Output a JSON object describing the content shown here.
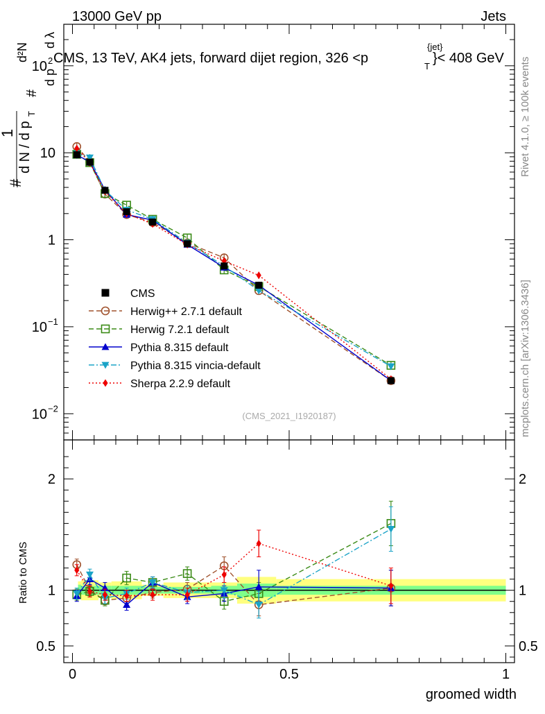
{
  "header": {
    "left": "13000 GeV pp",
    "right": "Jets",
    "title_main": "CMS, 13 TeV, AK4 jets, forward dijet region, 326 <p",
    "title_sup": "{jet}",
    "title_sub": "T",
    "title_end": "}< 408 GeV"
  },
  "side_labels": {
    "rivet": "Rivet 4.1.0, ≥ 100k events",
    "mcplots": "mcplots.cern.ch [arXiv:1306.3436]"
  },
  "watermark": "(CMS_2021_I1920187)",
  "y_label_main": {
    "hash": "#",
    "one": "1",
    "dn_dpt": "d N / d p",
    "t": "T",
    "d2n": "d²N",
    "hash2": "#",
    "dp": "d p",
    "dlambda": "d λ"
  },
  "y_label_ratio": "Ratio to CMS",
  "x_label": "groomed width",
  "chart_data": {
    "type": "scatter",
    "x": [
      0.01,
      0.04,
      0.075,
      0.125,
      0.185,
      0.265,
      0.35,
      0.43,
      0.735
    ],
    "x_edges": [
      0.0,
      0.02,
      0.06,
      0.09,
      0.16,
      0.21,
      0.32,
      0.38,
      0.47,
      1.0
    ],
    "xlim": [
      -0.02,
      1.02
    ],
    "ylim_main_log": [
      0.005,
      300
    ],
    "ylim_ratio": [
      0.35,
      2.35
    ],
    "y_ticks_main": [
      {
        "v": 100,
        "label": "10",
        "exp": "2"
      },
      {
        "v": 10,
        "label": "10",
        "exp": ""
      },
      {
        "v": 1,
        "label": "1",
        "exp": ""
      },
      {
        "v": 0.1,
        "label": "10",
        "exp": "−1"
      },
      {
        "v": 0.01,
        "label": "10",
        "exp": "−2"
      }
    ],
    "y_ticks_ratio": [
      {
        "v": 0.5,
        "label": "0.5"
      },
      {
        "v": 1,
        "label": "1"
      },
      {
        "v": 2,
        "label": "2"
      }
    ],
    "x_ticks": [
      {
        "v": 0,
        "label": "0"
      },
      {
        "v": 0.5,
        "label": "0.5"
      },
      {
        "v": 1,
        "label": "1"
      }
    ],
    "data": {
      "name": "CMS",
      "values": [
        9.5,
        7.8,
        3.7,
        2.1,
        1.6,
        0.9,
        0.5,
        0.3,
        0.024
      ],
      "band_green": [
        0.05,
        0.04,
        0.04,
        0.04,
        0.03,
        0.03,
        0.04,
        0.06,
        0.04
      ],
      "band_yellow": [
        0.08,
        0.09,
        0.07,
        0.08,
        0.05,
        0.07,
        0.07,
        0.12,
        0.1
      ]
    },
    "series": [
      {
        "name": "Herwig++ 2.7.1 default",
        "color": "#a0522d",
        "marker": "circle-open",
        "dash": "7,4",
        "values": [
          11.8,
          7.9,
          3.35,
          1.95,
          1.58,
          0.92,
          0.62,
          0.26,
          0.024
        ],
        "ratio": [
          1.23,
          1.0,
          0.91,
          0.93,
          0.98,
          1.01,
          1.22,
          0.87,
          1.02
        ],
        "ratio_err": [
          0.05,
          0.05,
          0.04,
          0.05,
          0.05,
          0.06,
          0.08,
          0.1,
          0.16
        ]
      },
      {
        "name": "Herwig 7.2.1 default",
        "color": "#3a8a16",
        "marker": "square-open",
        "dash": "7,4",
        "values": [
          9.6,
          7.7,
          3.4,
          2.5,
          1.72,
          1.05,
          0.45,
          0.29,
          0.036
        ],
        "ratio": [
          0.96,
          0.99,
          0.91,
          1.11,
          1.07,
          1.15,
          0.9,
          0.97,
          1.6
        ],
        "ratio_err": [
          0.05,
          0.05,
          0.05,
          0.06,
          0.05,
          0.06,
          0.07,
          0.1,
          0.2
        ]
      },
      {
        "name": "Pythia 8.315 default",
        "color": "#0000cc",
        "marker": "triangle-up",
        "dash": "",
        "values": [
          9.4,
          7.9,
          3.75,
          1.95,
          1.68,
          0.88,
          0.48,
          0.3,
          0.024
        ],
        "ratio": [
          0.95,
          1.1,
          1.02,
          0.87,
          1.07,
          0.94,
          0.97,
          1.03,
          1.02
        ],
        "ratio_err": [
          0.05,
          0.05,
          0.05,
          0.05,
          0.05,
          0.06,
          0.07,
          0.15,
          0.16
        ]
      },
      {
        "name": "Pythia 8.315 vincia-default",
        "color": "#1aa3c7",
        "marker": "triangle-down",
        "dash": "8,3,2,3",
        "values": [
          9.8,
          8.8,
          3.7,
          2.2,
          1.72,
          0.92,
          0.5,
          0.26,
          0.035
        ],
        "ratio": [
          0.97,
          1.14,
          0.93,
          0.97,
          1.07,
          0.98,
          1.0,
          0.87,
          1.55
        ],
        "ratio_err": [
          0.05,
          0.05,
          0.05,
          0.05,
          0.05,
          0.06,
          0.07,
          0.12,
          0.2
        ]
      },
      {
        "name": "Sherpa 2.2.9 default",
        "color": "#ee0000",
        "marker": "diamond",
        "dash": "2,3",
        "values": [
          11.2,
          7.7,
          3.6,
          2.0,
          1.52,
          0.88,
          0.57,
          0.39,
          0.025
        ],
        "ratio": [
          1.18,
          0.99,
          0.96,
          0.95,
          0.96,
          0.96,
          1.14,
          1.42,
          1.04
        ],
        "ratio_err": [
          0.05,
          0.05,
          0.05,
          0.05,
          0.05,
          0.06,
          0.07,
          0.12,
          0.16
        ]
      }
    ]
  }
}
